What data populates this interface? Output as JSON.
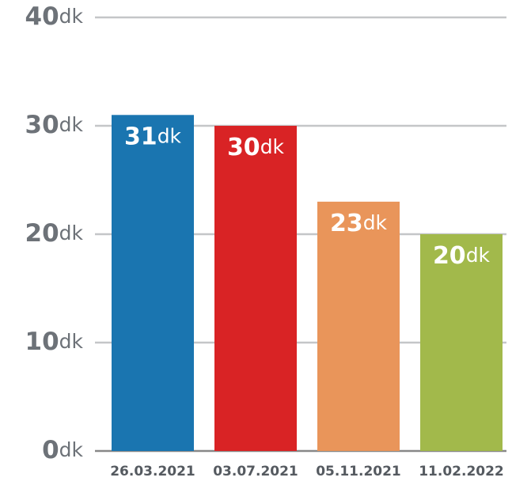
{
  "chart_data": {
    "type": "bar",
    "categories": [
      "26.03.2021",
      "03.07.2021",
      "05.11.2021",
      "11.02.2022"
    ],
    "values": [
      31,
      30,
      23,
      20
    ],
    "value_labels": [
      "31dk",
      "30dk",
      "23dk",
      "20dk"
    ],
    "colors": [
      "#1a75b0",
      "#d92325",
      "#e9955a",
      "#a2b94b"
    ],
    "ylim": [
      0,
      40
    ],
    "yticks": [
      {
        "value": 0,
        "label": "0dk"
      },
      {
        "value": 10,
        "label": "10dk"
      },
      {
        "value": 20,
        "label": "20dk"
      },
      {
        "value": 30,
        "label": "30dk"
      },
      {
        "value": 40,
        "label": "40dk"
      }
    ],
    "grid": true
  }
}
